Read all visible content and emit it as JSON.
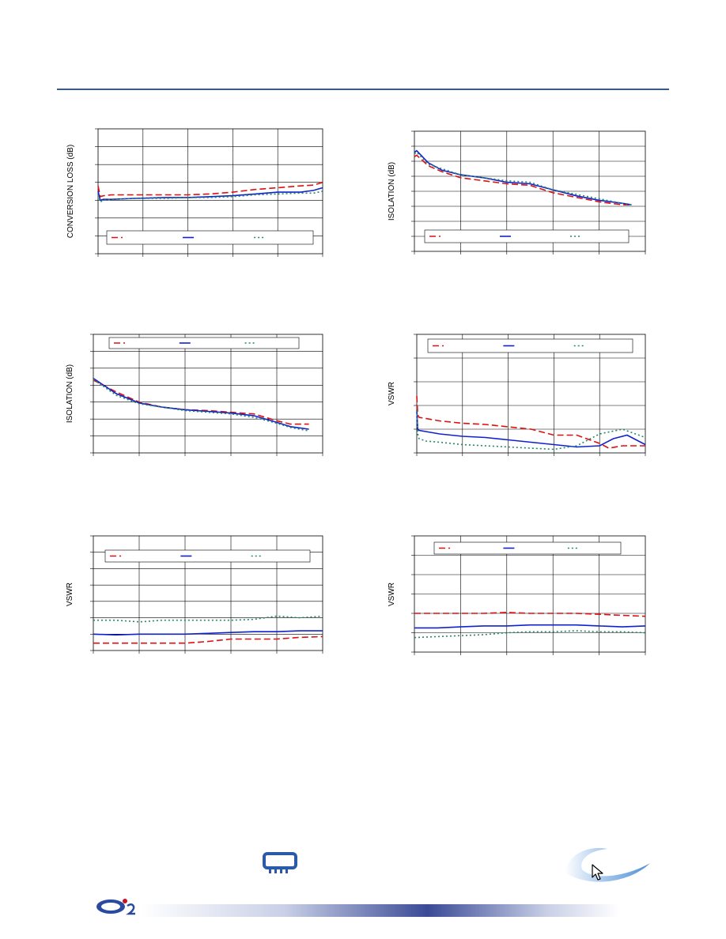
{
  "colors": {
    "red": "#dd1111",
    "blue": "#1122cc",
    "green": "#228866",
    "grid": "#000000",
    "header_rule": "#3a5a8c"
  },
  "icons": {
    "chip": "chip-icon",
    "swoosh": "swoosh-logo",
    "brand": "brand-logo",
    "cursor": "cursor-icon"
  },
  "chart_data": [
    {
      "type": "line",
      "ylabel": "CONVERSION LOSS (dB)",
      "grid": true,
      "legend": "bottom",
      "xlim": [
        0,
        5
      ],
      "ylim": [
        0,
        7
      ],
      "x_divisions": 5,
      "y_divisions": 7,
      "series": [
        {
          "color": "red",
          "dash": "8,4",
          "x": [
            0,
            0.05,
            0.12,
            0.3,
            0.8,
            1.5,
            2.0,
            2.5,
            3.0,
            3.5,
            4.0,
            4.5,
            4.8,
            5.0
          ],
          "y": [
            3.8,
            3.2,
            3.25,
            3.3,
            3.3,
            3.3,
            3.3,
            3.35,
            3.45,
            3.6,
            3.7,
            3.8,
            3.85,
            4.0
          ]
        },
        {
          "color": "blue",
          "dash": "",
          "x": [
            0,
            0.05,
            0.12,
            0.3,
            0.8,
            1.5,
            2.0,
            2.5,
            3.0,
            3.5,
            4.0,
            4.5,
            4.8,
            5.0
          ],
          "y": [
            3.5,
            3.0,
            3.05,
            3.05,
            3.1,
            3.15,
            3.15,
            3.2,
            3.25,
            3.35,
            3.45,
            3.45,
            3.55,
            3.7
          ]
        },
        {
          "color": "green",
          "dash": "2,3",
          "x": [
            0,
            0.05,
            0.12,
            0.3,
            0.8,
            1.5,
            2.0,
            2.5,
            3.0,
            3.5,
            4.0,
            4.5,
            4.8,
            5.0
          ],
          "y": [
            3.3,
            2.9,
            3.0,
            3.05,
            3.1,
            3.1,
            3.15,
            3.15,
            3.2,
            3.3,
            3.35,
            3.4,
            3.4,
            3.5
          ]
        }
      ]
    },
    {
      "type": "line",
      "ylabel": "ISOLATION (dB)",
      "grid": true,
      "legend": "bottom",
      "xlim": [
        0,
        5
      ],
      "ylim": [
        0,
        8
      ],
      "x_divisions": 5,
      "y_divisions": 8,
      "series": [
        {
          "color": "red",
          "dash": "8,4",
          "x": [
            0,
            0.05,
            0.3,
            0.6,
            1.0,
            1.5,
            2.0,
            2.5,
            3.0,
            3.5,
            4.0,
            4.5,
            4.7
          ],
          "y": [
            6.3,
            6.4,
            5.7,
            5.3,
            4.9,
            4.7,
            4.5,
            4.4,
            3.9,
            3.6,
            3.3,
            3.1,
            3.1
          ]
        },
        {
          "color": "blue",
          "dash": "",
          "x": [
            0,
            0.05,
            0.3,
            0.6,
            1.0,
            1.5,
            2.0,
            2.5,
            3.0,
            3.5,
            4.0,
            4.5,
            4.7
          ],
          "y": [
            6.6,
            6.7,
            5.9,
            5.4,
            5.1,
            4.9,
            4.6,
            4.5,
            4.1,
            3.7,
            3.4,
            3.2,
            3.1
          ]
        },
        {
          "color": "green",
          "dash": "2,3",
          "x": [
            0,
            0.05,
            0.3,
            0.6,
            1.0,
            1.5,
            2.0,
            2.5,
            3.0,
            3.5,
            4.0,
            4.5,
            4.7
          ],
          "y": [
            6.5,
            6.6,
            5.8,
            5.5,
            5.1,
            4.9,
            4.7,
            4.6,
            4.1,
            3.8,
            3.5,
            3.2,
            3.1
          ]
        }
      ]
    },
    {
      "type": "line",
      "ylabel": "ISOLATION (dB)",
      "grid": true,
      "legend": "top",
      "xlim": [
        0,
        5
      ],
      "ylim": [
        0,
        7
      ],
      "x_divisions": 5,
      "y_divisions": 7,
      "series": [
        {
          "color": "red",
          "dash": "8,4",
          "x": [
            0,
            0.5,
            1.0,
            1.5,
            2.0,
            2.5,
            3.0,
            3.5,
            4.0,
            4.3,
            4.7
          ],
          "y": [
            4.3,
            3.6,
            3.0,
            2.7,
            2.55,
            2.5,
            2.4,
            2.3,
            1.9,
            1.7,
            1.7
          ]
        },
        {
          "color": "blue",
          "dash": "",
          "x": [
            0,
            0.5,
            1.0,
            1.5,
            2.0,
            2.5,
            3.0,
            3.5,
            4.0,
            4.3,
            4.7
          ],
          "y": [
            4.4,
            3.5,
            2.95,
            2.7,
            2.55,
            2.45,
            2.35,
            2.2,
            1.8,
            1.55,
            1.4
          ]
        },
        {
          "color": "green",
          "dash": "2,3",
          "x": [
            0,
            0.5,
            1.0,
            1.5,
            2.0,
            2.5,
            3.0,
            3.5,
            4.0,
            4.3,
            4.7
          ],
          "y": [
            4.35,
            3.4,
            2.9,
            2.7,
            2.5,
            2.4,
            2.3,
            2.1,
            1.75,
            1.5,
            1.3
          ]
        }
      ]
    },
    {
      "type": "line",
      "ylabel": "VSWR",
      "grid": true,
      "legend": "top",
      "xlim": [
        0,
        5
      ],
      "ylim": [
        0,
        5
      ],
      "x_divisions": 5,
      "y_divisions": 5,
      "series": [
        {
          "color": "red",
          "dash": "8,4",
          "x": [
            0,
            0.02,
            0.05,
            0.5,
            1.0,
            1.5,
            2.0,
            2.5,
            3.0,
            3.5,
            4.0,
            4.2,
            4.5,
            5.0
          ],
          "y": [
            2.4,
            1.6,
            1.5,
            1.35,
            1.25,
            1.2,
            1.1,
            1.0,
            0.75,
            0.75,
            0.4,
            0.2,
            0.3,
            0.3
          ]
        },
        {
          "color": "blue",
          "dash": "",
          "x": [
            0,
            0.02,
            0.05,
            0.5,
            1.0,
            1.5,
            2.0,
            2.5,
            3.0,
            3.5,
            4.0,
            4.3,
            4.6,
            5.0
          ],
          "y": [
            1.8,
            1.0,
            0.95,
            0.8,
            0.7,
            0.65,
            0.55,
            0.45,
            0.35,
            0.25,
            0.3,
            0.6,
            0.75,
            0.35
          ]
        },
        {
          "color": "green",
          "dash": "2,3",
          "x": [
            0,
            0.02,
            0.05,
            0.2,
            0.5,
            1.0,
            1.5,
            2.0,
            2.5,
            3.0,
            3.5,
            4.0,
            4.5,
            5.0
          ],
          "y": [
            1.8,
            0.8,
            0.6,
            0.5,
            0.45,
            0.35,
            0.3,
            0.25,
            0.2,
            0.15,
            0.3,
            0.8,
            1.0,
            0.65
          ]
        }
      ]
    },
    {
      "type": "line",
      "ylabel": "VSWR",
      "grid": true,
      "legend": "top",
      "xlim": [
        0,
        5
      ],
      "ylim": [
        0,
        7
      ],
      "x_divisions": 5,
      "y_divisions": 7,
      "series": [
        {
          "color": "red",
          "dash": "8,4",
          "x": [
            0,
            0.5,
            1.0,
            1.5,
            2.0,
            2.5,
            3.0,
            3.5,
            4.0,
            4.5,
            5.0
          ],
          "y": [
            0.45,
            0.45,
            0.45,
            0.45,
            0.45,
            0.55,
            0.7,
            0.7,
            0.7,
            0.8,
            0.85
          ]
        },
        {
          "color": "blue",
          "dash": "",
          "x": [
            0,
            0.5,
            1.0,
            1.5,
            2.0,
            2.5,
            3.0,
            3.5,
            4.0,
            4.5,
            5.0
          ],
          "y": [
            1.0,
            0.95,
            1.0,
            1.0,
            1.0,
            1.05,
            1.1,
            1.15,
            1.15,
            1.2,
            1.2
          ]
        },
        {
          "color": "green",
          "dash": "2,3",
          "x": [
            0,
            0.5,
            1.0,
            1.5,
            2.0,
            2.5,
            3.0,
            3.5,
            4.0,
            4.5,
            5.0
          ],
          "y": [
            1.85,
            1.85,
            1.75,
            1.85,
            1.85,
            1.85,
            1.85,
            1.9,
            2.1,
            2.0,
            2.1
          ]
        }
      ]
    },
    {
      "type": "line",
      "ylabel": "VSWR",
      "grid": true,
      "legend": "top",
      "xlim": [
        0,
        5
      ],
      "ylim": [
        0,
        6
      ],
      "x_divisions": 5,
      "y_divisions": 6,
      "series": [
        {
          "color": "red",
          "dash": "8,4",
          "x": [
            0,
            0.5,
            1.0,
            1.5,
            2.0,
            2.5,
            3.0,
            3.5,
            4.0,
            4.5,
            5.0
          ],
          "y": [
            2.0,
            2.0,
            2.0,
            2.0,
            2.05,
            2.0,
            2.0,
            2.0,
            1.95,
            1.9,
            1.85
          ]
        },
        {
          "color": "blue",
          "dash": "",
          "x": [
            0,
            0.5,
            1.0,
            1.5,
            2.0,
            2.5,
            3.0,
            3.5,
            4.0,
            4.5,
            5.0
          ],
          "y": [
            1.25,
            1.25,
            1.3,
            1.35,
            1.35,
            1.4,
            1.4,
            1.4,
            1.35,
            1.3,
            1.35
          ]
        },
        {
          "color": "green",
          "dash": "2,3",
          "x": [
            0,
            0.5,
            1.0,
            1.5,
            2.0,
            2.5,
            3.0,
            3.5,
            4.0,
            4.5,
            5.0
          ],
          "y": [
            0.75,
            0.8,
            0.85,
            0.9,
            1.0,
            1.05,
            1.05,
            1.1,
            1.05,
            1.05,
            1.0
          ]
        }
      ]
    }
  ]
}
